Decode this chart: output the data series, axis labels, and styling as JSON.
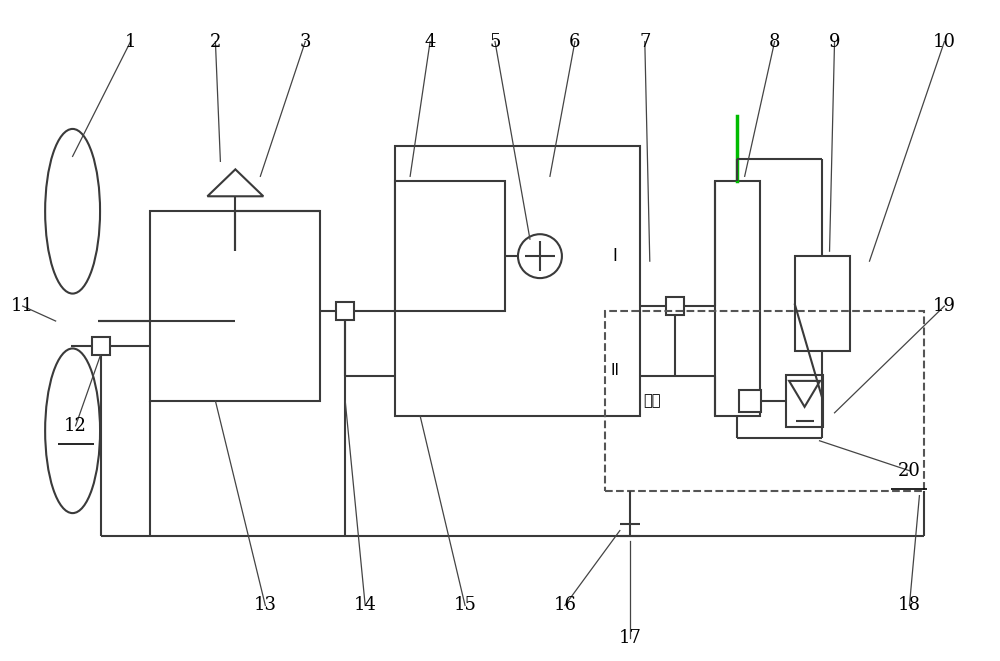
{
  "bg": "#ffffff",
  "lc": "#3a3a3a",
  "lw": 1.5,
  "green": "#00bb00",
  "fig_w": 10.0,
  "fig_h": 6.61,
  "label_positions": {
    "1": [
      1.3,
      6.2,
      0.72,
      5.05
    ],
    "2": [
      2.15,
      6.2,
      2.2,
      5.0
    ],
    "3": [
      3.05,
      6.2,
      2.6,
      4.85
    ],
    "4": [
      4.3,
      6.2,
      4.1,
      4.85
    ],
    "5": [
      4.95,
      6.2,
      5.3,
      4.22
    ],
    "6": [
      5.75,
      6.2,
      5.5,
      4.85
    ],
    "7": [
      6.45,
      6.2,
      6.5,
      4.0
    ],
    "8": [
      7.75,
      6.2,
      7.45,
      4.85
    ],
    "9": [
      8.35,
      6.2,
      8.3,
      4.1
    ],
    "10": [
      9.45,
      6.2,
      8.7,
      4.0
    ],
    "11": [
      0.22,
      3.55,
      0.55,
      3.4
    ],
    "12": [
      0.75,
      2.35,
      1.0,
      3.06
    ],
    "13": [
      2.65,
      0.55,
      2.15,
      2.6
    ],
    "14": [
      3.65,
      0.55,
      3.45,
      2.6
    ],
    "15": [
      4.65,
      0.55,
      4.2,
      2.45
    ],
    "16": [
      5.65,
      0.55,
      6.2,
      1.3
    ],
    "17": [
      6.3,
      0.22,
      6.3,
      1.2
    ],
    "18": [
      9.1,
      0.55,
      9.2,
      1.65
    ],
    "19": [
      9.45,
      3.55,
      8.35,
      2.48
    ],
    "20": [
      9.1,
      1.9,
      8.2,
      2.2
    ]
  },
  "underlined": [
    "12",
    "20"
  ]
}
